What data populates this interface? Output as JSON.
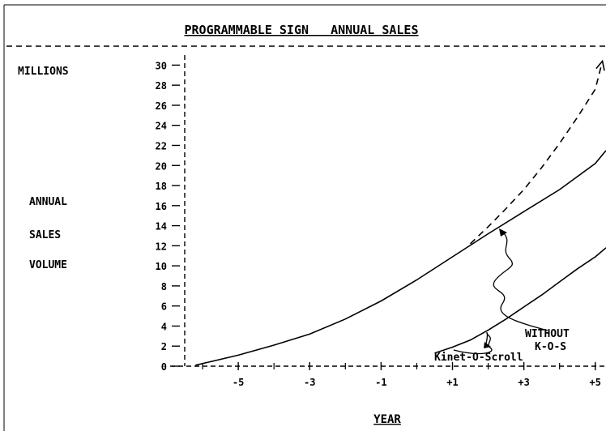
{
  "chart_data": {
    "type": "line",
    "title": "PROGRAMMABLE SIGN   ANNUAL SALES",
    "ylabel_top": "MILLIONS",
    "ylabel_lines": [
      "ANNUAL",
      "SALES",
      "VOLUME"
    ],
    "xlabel": "YEAR",
    "xlim": [
      -6.5,
      5.3
    ],
    "ylim": [
      0,
      31
    ],
    "y_ticks": [
      0,
      2,
      4,
      6,
      8,
      10,
      12,
      14,
      16,
      18,
      20,
      22,
      24,
      26,
      28,
      30
    ],
    "y_tick_labels": [
      "0",
      "2",
      "4",
      "6",
      "8",
      "10",
      "12",
      "14",
      "16",
      "18",
      "20",
      "22",
      "24",
      "26",
      "28",
      "30"
    ],
    "x_ticks": [
      -5,
      -3,
      -1,
      1,
      3,
      5
    ],
    "x_tick_labels": [
      "-5",
      "-3",
      "-1",
      "+1",
      "+3",
      "+5"
    ],
    "series": [
      {
        "name": "WITHOUT K-O-S",
        "style": "solid",
        "x": [
          -6.2,
          -5,
          -4,
          -3,
          -2,
          -1,
          0,
          1,
          2,
          3,
          4,
          5,
          5.3
        ],
        "y": [
          0.1,
          1.1,
          2.1,
          3.2,
          4.7,
          6.5,
          8.6,
          10.9,
          13.2,
          15.4,
          17.6,
          20.2,
          21.5
        ]
      },
      {
        "name": "",
        "style": "dashed",
        "x": [
          1.5,
          2,
          2.5,
          3,
          3.5,
          4,
          4.5,
          5,
          5.2
        ],
        "y": [
          12.2,
          13.9,
          15.7,
          17.6,
          19.8,
          22.2,
          24.8,
          27.6,
          30.4
        ]
      },
      {
        "name": "Kinet-O-Scroll",
        "style": "solid",
        "x": [
          0.5,
          1,
          1.5,
          2,
          2.5,
          3,
          3.5,
          4,
          4.5,
          5,
          5.3
        ],
        "y": [
          1.3,
          1.9,
          2.6,
          3.6,
          4.7,
          5.9,
          7.1,
          8.4,
          9.7,
          10.9,
          11.8
        ]
      }
    ],
    "annotations": [
      {
        "lines": [
          "WITHOUT",
          "K-O-S"
        ],
        "points_to": {
          "x": 2.2,
          "y": 14.8
        }
      },
      {
        "lines": [
          "Kinet-O-Scroll"
        ],
        "points_to": {
          "x": 2.1,
          "y": 4.0
        }
      }
    ]
  }
}
